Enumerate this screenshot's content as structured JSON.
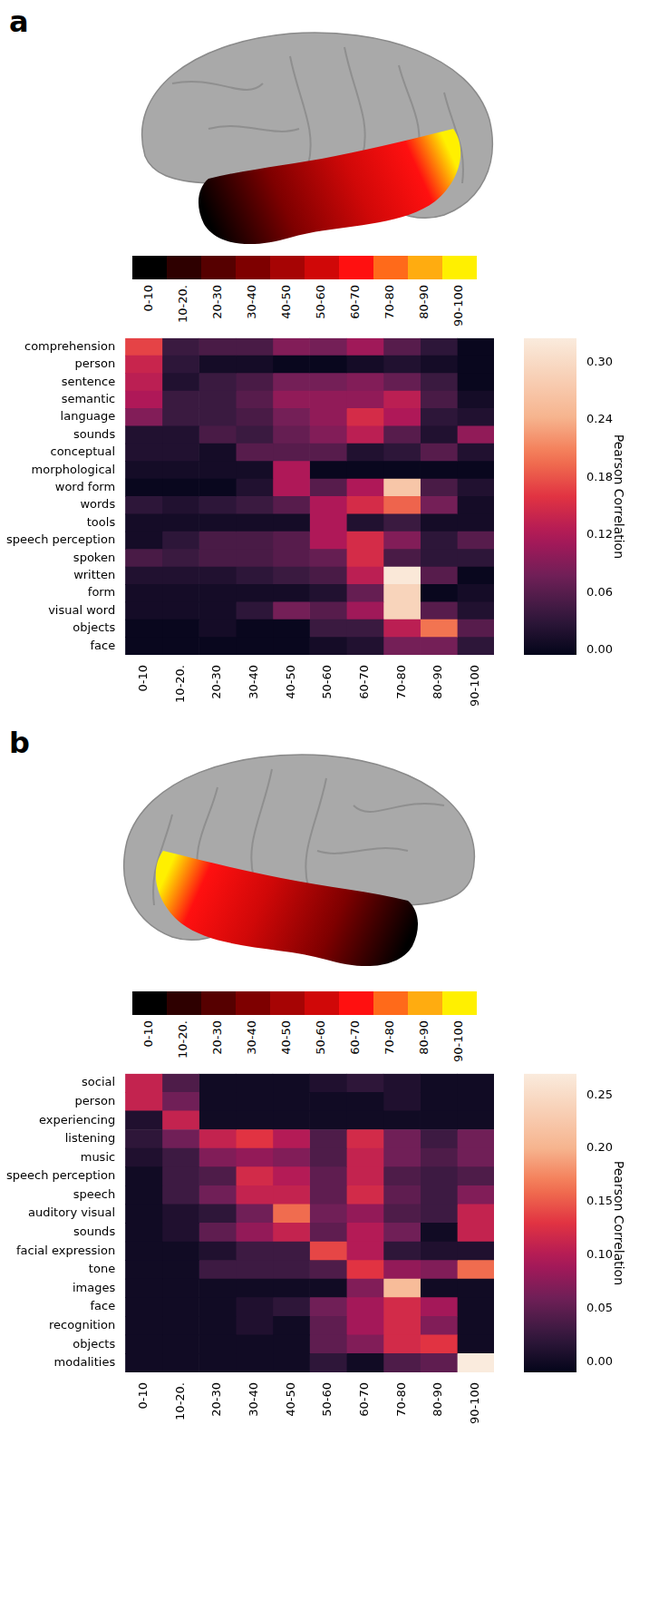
{
  "chart_data": [
    {
      "type": "heatmap",
      "panel": "a",
      "brain_legend": {
        "labels": [
          "0-10",
          "10-20.",
          "20-30",
          "30-40",
          "40-50",
          "50-60",
          "60-70",
          "70-80",
          "80-90",
          "90-100"
        ],
        "colors": [
          "#000000",
          "#2e0000",
          "#560000",
          "#7e0000",
          "#a60404",
          "#d00808",
          "#ff1010",
          "#ff6a1a",
          "#ffac10",
          "#fff000"
        ]
      },
      "rows": [
        "comprehension",
        "person",
        "sentence",
        "semantic",
        "language",
        "sounds",
        "conceptual",
        "morphological",
        "word form",
        "words",
        "tools",
        "speech perception",
        "spoken",
        "written",
        "form",
        "visual word",
        "objects",
        "face"
      ],
      "columns": [
        "0-10",
        "10-20.",
        "20-30",
        "30-40",
        "40-50",
        "50-60",
        "60-70",
        "70-80",
        "80-90",
        "90-100"
      ],
      "values": [
        [
          0.17,
          0.04,
          0.05,
          0.05,
          0.09,
          0.08,
          0.11,
          0.06,
          0.03,
          0.0
        ],
        [
          0.14,
          0.03,
          0.01,
          0.01,
          0.0,
          0.0,
          0.01,
          0.02,
          0.01,
          0.0
        ],
        [
          0.13,
          0.02,
          0.04,
          0.05,
          0.08,
          0.08,
          0.09,
          0.07,
          0.04,
          0.0
        ],
        [
          0.12,
          0.04,
          0.04,
          0.06,
          0.1,
          0.1,
          0.1,
          0.13,
          0.05,
          0.01
        ],
        [
          0.09,
          0.04,
          0.04,
          0.05,
          0.08,
          0.1,
          0.15,
          0.12,
          0.03,
          0.02
        ],
        [
          0.02,
          0.02,
          0.05,
          0.04,
          0.07,
          0.09,
          0.13,
          0.06,
          0.02,
          0.1
        ],
        [
          0.02,
          0.02,
          0.01,
          0.06,
          0.06,
          0.06,
          0.02,
          0.03,
          0.06,
          0.02
        ],
        [
          0.01,
          0.01,
          0.01,
          0.01,
          0.12,
          0.0,
          0.0,
          0.0,
          0.0,
          0.0
        ],
        [
          0.0,
          0.0,
          0.0,
          0.02,
          0.12,
          0.06,
          0.12,
          0.27,
          0.05,
          0.02
        ],
        [
          0.03,
          0.02,
          0.03,
          0.04,
          0.06,
          0.12,
          0.15,
          0.19,
          0.08,
          0.01
        ],
        [
          0.01,
          0.01,
          0.01,
          0.01,
          0.01,
          0.12,
          0.02,
          0.04,
          0.01,
          0.01
        ],
        [
          0.01,
          0.03,
          0.05,
          0.05,
          0.06,
          0.12,
          0.15,
          0.09,
          0.03,
          0.06
        ],
        [
          0.05,
          0.04,
          0.05,
          0.05,
          0.06,
          0.07,
          0.15,
          0.05,
          0.03,
          0.03
        ],
        [
          0.02,
          0.02,
          0.02,
          0.03,
          0.04,
          0.05,
          0.13,
          0.32,
          0.06,
          0.0
        ],
        [
          0.01,
          0.01,
          0.01,
          0.01,
          0.01,
          0.02,
          0.07,
          0.29,
          0.0,
          0.01
        ],
        [
          0.01,
          0.01,
          0.01,
          0.03,
          0.08,
          0.06,
          0.11,
          0.29,
          0.06,
          0.02
        ],
        [
          0.0,
          0.0,
          0.01,
          0.0,
          0.0,
          0.04,
          0.04,
          0.13,
          0.2,
          0.06
        ],
        [
          0.0,
          0.0,
          0.0,
          0.0,
          0.0,
          0.01,
          0.02,
          0.08,
          0.08,
          0.03
        ]
      ],
      "colorbar": {
        "label": "Pearson Correlation",
        "range": [
          -0.005,
          0.325
        ],
        "ticks": [
          {
            "value": 0,
            "label": "0.00"
          },
          {
            "value": 0.06,
            "label": "0.06"
          },
          {
            "value": 0.12,
            "label": "0.12"
          },
          {
            "value": 0.18,
            "label": "0.18"
          },
          {
            "value": 0.24,
            "label": "0.24"
          },
          {
            "value": 0.3,
            "label": "0.30"
          }
        ]
      }
    },
    {
      "type": "heatmap",
      "panel": "b",
      "brain_legend": {
        "labels": [
          "0-10",
          "10-20.",
          "20-30",
          "30-40",
          "40-50",
          "50-60",
          "60-70",
          "70-80",
          "80-90",
          "90-100"
        ],
        "colors": [
          "#000000",
          "#2e0000",
          "#560000",
          "#7e0000",
          "#a60404",
          "#d00808",
          "#ff1010",
          "#ff6a1a",
          "#ffac10",
          "#fff000"
        ]
      },
      "rows": [
        "social",
        "person",
        "experiencing",
        "listening",
        "music",
        "speech perception",
        "speech",
        "auditory visual",
        "sounds",
        "facial expression",
        "tone",
        "images",
        "face",
        "recognition",
        "objects",
        "modalities"
      ],
      "columns": [
        "0-10",
        "10-20.",
        "20-30",
        "30-40",
        "40-50",
        "50-60",
        "60-70",
        "70-80",
        "80-90",
        "90-100"
      ],
      "values": [
        [
          0.11,
          0.04,
          0.0,
          0.0,
          0.0,
          0.01,
          0.02,
          0.01,
          0.0,
          0.0
        ],
        [
          0.11,
          0.06,
          0.0,
          0.0,
          0.0,
          0.0,
          0.0,
          0.01,
          0.0,
          0.0
        ],
        [
          0.01,
          0.11,
          0.0,
          0.0,
          0.0,
          0.0,
          0.0,
          0.0,
          0.0,
          0.0
        ],
        [
          0.02,
          0.06,
          0.11,
          0.13,
          0.1,
          0.04,
          0.12,
          0.06,
          0.03,
          0.06
        ],
        [
          0.01,
          0.03,
          0.07,
          0.08,
          0.07,
          0.04,
          0.11,
          0.06,
          0.04,
          0.06
        ],
        [
          0.0,
          0.03,
          0.04,
          0.12,
          0.1,
          0.05,
          0.11,
          0.04,
          0.03,
          0.04
        ],
        [
          0.0,
          0.03,
          0.06,
          0.11,
          0.11,
          0.05,
          0.12,
          0.05,
          0.03,
          0.07
        ],
        [
          0.0,
          0.01,
          0.02,
          0.06,
          0.16,
          0.06,
          0.08,
          0.04,
          0.03,
          0.11
        ],
        [
          0.0,
          0.01,
          0.05,
          0.08,
          0.11,
          0.05,
          0.1,
          0.06,
          0.0,
          0.11
        ],
        [
          0.0,
          0.0,
          0.01,
          0.03,
          0.03,
          0.14,
          0.1,
          0.02,
          0.01,
          0.01
        ],
        [
          0.0,
          0.0,
          0.03,
          0.03,
          0.03,
          0.04,
          0.13,
          0.08,
          0.07,
          0.16
        ],
        [
          0.0,
          0.0,
          0.0,
          0.0,
          0.0,
          0.0,
          0.07,
          0.21,
          0.0,
          0.0
        ],
        [
          0.0,
          0.0,
          0.0,
          0.01,
          0.02,
          0.06,
          0.09,
          0.12,
          0.09,
          0.0
        ],
        [
          0.0,
          0.0,
          0.0,
          0.01,
          0.0,
          0.05,
          0.09,
          0.12,
          0.07,
          0.0
        ],
        [
          0.0,
          0.0,
          0.0,
          0.0,
          0.0,
          0.05,
          0.07,
          0.12,
          0.13,
          0.0
        ],
        [
          0.0,
          0.0,
          0.0,
          0.0,
          0.0,
          0.02,
          0.0,
          0.04,
          0.05,
          0.27
        ]
      ],
      "colorbar": {
        "label": "Pearson Correlation",
        "range": [
          -0.01,
          0.27
        ],
        "ticks": [
          {
            "value": 0,
            "label": "0.00"
          },
          {
            "value": 0.05,
            "label": "0.05"
          },
          {
            "value": 0.1,
            "label": "0.10"
          },
          {
            "value": 0.15,
            "label": "0.15"
          },
          {
            "value": 0.2,
            "label": "0.20"
          },
          {
            "value": 0.25,
            "label": "0.25"
          }
        ]
      }
    }
  ]
}
